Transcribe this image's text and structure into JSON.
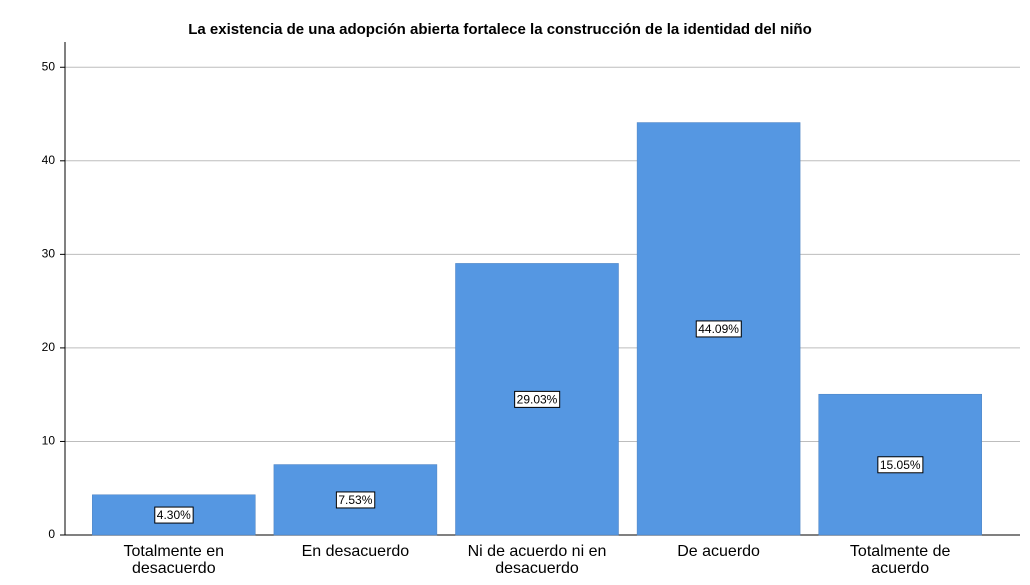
{
  "chart_data": {
    "type": "bar",
    "title": "La existencia de una adopción abierta fortalece la construcción de la identidad del niño",
    "categories": [
      "Totalmente en desacuerdo",
      "En desacuerdo",
      "Ni de acuerdo ni en desacuerdo",
      "De acuerdo",
      "Totalmente de acuerdo"
    ],
    "values": [
      4.3,
      7.53,
      29.03,
      44.09,
      15.05
    ],
    "value_labels": [
      "4.30%",
      "7.53%",
      "29.03%",
      "44.09%",
      "15.05%"
    ],
    "color": "#5597e2",
    "ylim": [
      0,
      52.7
    ],
    "yticks": [
      0,
      10,
      20,
      30,
      40,
      50
    ],
    "grid": true
  }
}
